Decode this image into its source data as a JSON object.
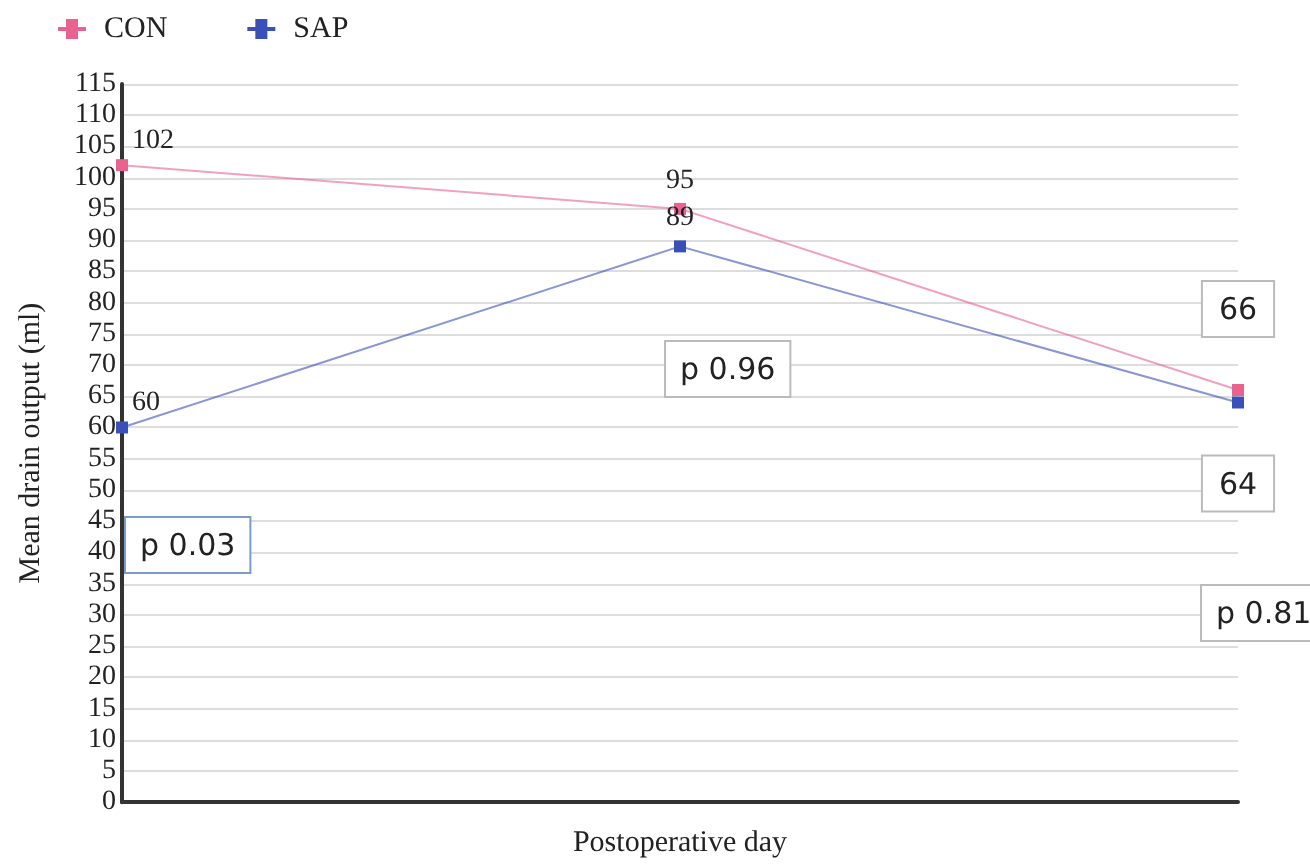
{
  "chart_data": {
    "type": "line",
    "xlabel": "Postoperative day",
    "ylabel": "Mean drain output (ml)",
    "categories": [
      null,
      null,
      null
    ],
    "series": [
      {
        "name": "CON",
        "color": "#e8638f",
        "values": [
          102,
          95,
          66
        ],
        "value_labels": [
          "102",
          "95",
          "66"
        ]
      },
      {
        "name": "SAP",
        "color": "#3b4fb8",
        "values": [
          60,
          89,
          64
        ],
        "value_labels": [
          "60",
          "89",
          "64"
        ]
      }
    ],
    "ylim": [
      0,
      115
    ],
    "yticks": [
      0,
      5,
      10,
      15,
      20,
      25,
      30,
      35,
      40,
      45,
      50,
      55,
      60,
      65,
      70,
      75,
      80,
      85,
      90,
      95,
      100,
      105,
      110,
      115
    ],
    "grid": "y",
    "legend": "top left",
    "marker": "square",
    "line_style": "solid",
    "annotations": [
      "p 0.03",
      "p 0.96",
      "p 0.81"
    ]
  }
}
